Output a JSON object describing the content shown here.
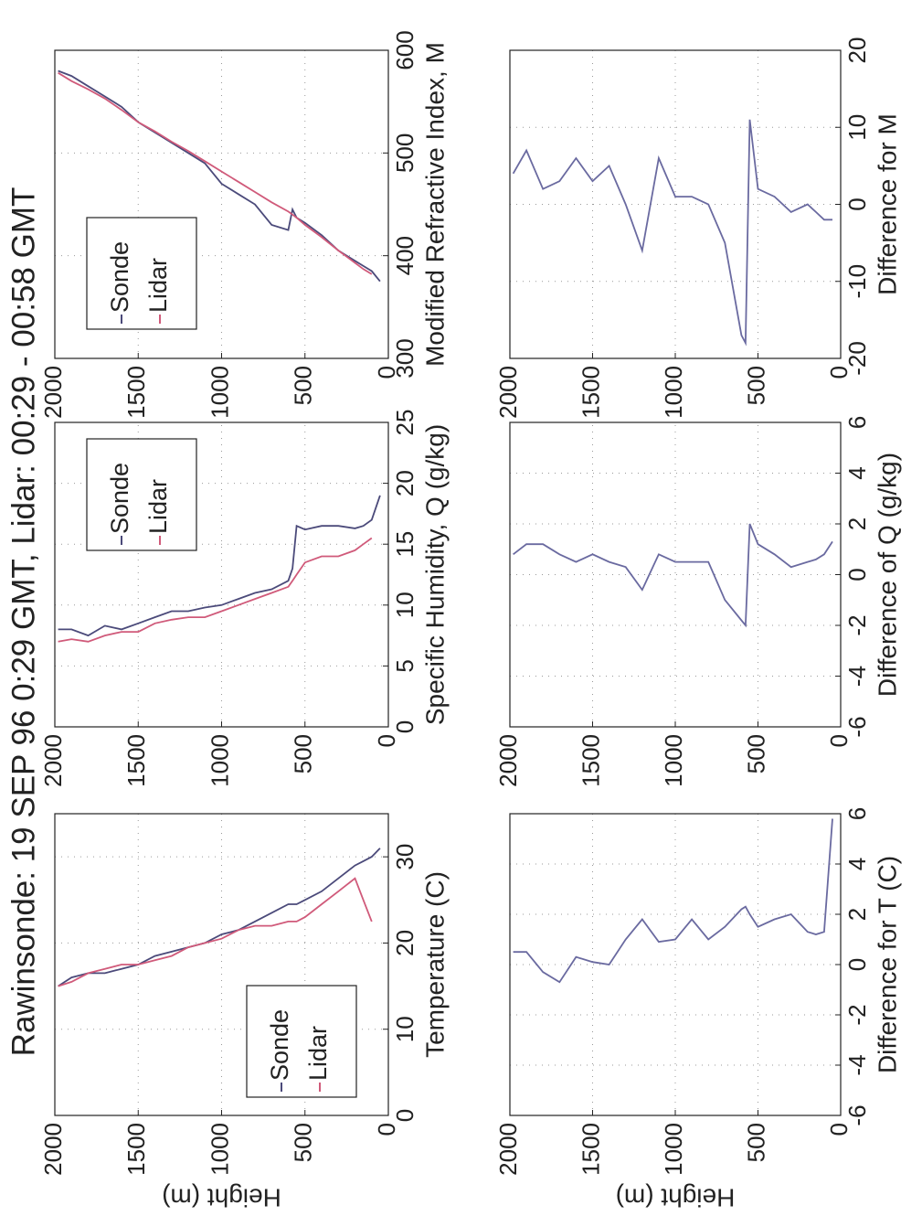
{
  "title": "Rawinsonde: 19 SEP 96  0:29 GMT,  Lidar:  00:29 - 00:58 GMT",
  "chart_data": [
    {
      "type": "line",
      "x_label": "Temperature (C)",
      "y_label": "Height (m)",
      "y": [
        50,
        100,
        150,
        200,
        300,
        400,
        500,
        550,
        575,
        600,
        700,
        800,
        900,
        1000,
        1100,
        1200,
        1300,
        1400,
        1500,
        1600,
        1700,
        1800,
        1900,
        1980
      ],
      "series": [
        {
          "name": "Sonde",
          "color": "#4b4a7a",
          "values": [
            31,
            30,
            29.5,
            29,
            27.5,
            26,
            25,
            24.5,
            24.5,
            24.5,
            23.5,
            22.5,
            21.5,
            21,
            20,
            19.5,
            19,
            18.5,
            17.5,
            17,
            16.5,
            16.5,
            16,
            15
          ]
        },
        {
          "name": "Lidar",
          "color": "#d05a7a",
          "values": [
            null,
            22.5,
            25,
            27.5,
            26,
            24.5,
            23,
            22.5,
            22.5,
            22.5,
            22,
            22,
            21.5,
            20.5,
            20,
            19.5,
            18.5,
            18,
            17.5,
            17.5,
            17,
            16.5,
            15.5,
            15
          ]
        }
      ],
      "xlim": [
        0,
        35
      ],
      "xticks": [
        0,
        10,
        20,
        30
      ],
      "ylim": [
        0,
        2000
      ],
      "yticks": [
        0,
        500,
        1000,
        1500,
        2000
      ],
      "grid": true,
      "legend": "lower left"
    },
    {
      "type": "line",
      "x_label": "Specific Humidity, Q (g/kg)",
      "y": [
        50,
        100,
        150,
        200,
        300,
        400,
        500,
        550,
        575,
        600,
        700,
        800,
        900,
        1000,
        1100,
        1200,
        1300,
        1400,
        1500,
        1600,
        1700,
        1800,
        1900,
        1980
      ],
      "series": [
        {
          "name": "Sonde",
          "color": "#4b4a7a",
          "values": [
            19,
            17,
            16.5,
            16.3,
            16.5,
            16.5,
            16.2,
            16.5,
            13,
            12,
            11.3,
            11,
            10.5,
            10,
            9.8,
            9.5,
            9.5,
            9,
            8.5,
            8,
            8.3,
            7.5,
            8,
            8
          ]
        },
        {
          "name": "Lidar",
          "color": "#d05a7a",
          "values": [
            null,
            15.5,
            15,
            14.5,
            14,
            14,
            13.5,
            12.5,
            12,
            11.5,
            11,
            10.5,
            10,
            9.5,
            9,
            9,
            8.8,
            8.5,
            7.8,
            7.8,
            7.5,
            7,
            7.2,
            7
          ]
        }
      ],
      "xlim": [
        0,
        25
      ],
      "xticks": [
        0,
        5,
        10,
        15,
        20,
        25
      ],
      "ylim": [
        0,
        2000
      ],
      "yticks": [
        0,
        500,
        1000,
        1500,
        2000
      ],
      "grid": true,
      "legend": "upper right"
    },
    {
      "type": "line",
      "x_label": "Modified Refractive Index, M",
      "y": [
        50,
        100,
        150,
        200,
        300,
        400,
        500,
        550,
        575,
        600,
        700,
        800,
        900,
        1000,
        1100,
        1200,
        1300,
        1400,
        1500,
        1600,
        1700,
        1800,
        1900,
        1980
      ],
      "series": [
        {
          "name": "Sonde",
          "color": "#4b4a7a",
          "values": [
            375,
            385,
            390,
            395,
            405,
            420,
            432,
            437,
            445,
            425,
            430,
            450,
            460,
            470,
            490,
            500,
            510,
            520,
            530,
            545,
            555,
            565,
            575,
            580
          ]
        },
        {
          "name": "Lidar",
          "color": "#d05a7a",
          "values": [
            null,
            382,
            387,
            393,
            405,
            418,
            430,
            437,
            440,
            443,
            452,
            462,
            472,
            482,
            492,
            502,
            511,
            521,
            530,
            542,
            553,
            562,
            570,
            578
          ]
        }
      ],
      "xlim": [
        300,
        600
      ],
      "xticks": [
        300,
        400,
        500,
        600
      ],
      "ylim": [
        0,
        2000
      ],
      "yticks": [
        0,
        500,
        1000,
        1500,
        2000
      ],
      "grid": true,
      "legend": "upper left"
    },
    {
      "type": "line",
      "x_label": "Difference for T (C)",
      "y_label": "Height (m)",
      "y": [
        50,
        100,
        150,
        200,
        300,
        400,
        500,
        550,
        575,
        600,
        700,
        800,
        900,
        1000,
        1100,
        1200,
        1300,
        1400,
        1500,
        1600,
        1700,
        1800,
        1900,
        1980
      ],
      "series": [
        {
          "color": "#6a6aa0",
          "values": [
            5.8,
            1.3,
            1.2,
            1.3,
            2,
            1.8,
            1.5,
            2,
            2.3,
            2.2,
            1.5,
            1,
            1.8,
            1,
            0.9,
            1.8,
            1,
            0,
            0.1,
            0.3,
            -0.7,
            -0.3,
            0.5,
            0.5
          ]
        }
      ],
      "xlim": [
        -6,
        6
      ],
      "xticks": [
        -6,
        -4,
        -2,
        0,
        2,
        4,
        6
      ],
      "ylim": [
        0,
        2000
      ],
      "yticks": [
        0,
        500,
        1000,
        1500,
        2000
      ],
      "grid": true
    },
    {
      "type": "line",
      "x_label": "Difference of Q (g/kg)",
      "y": [
        50,
        100,
        150,
        200,
        300,
        400,
        500,
        550,
        575,
        600,
        700,
        800,
        900,
        1000,
        1100,
        1200,
        1300,
        1400,
        1500,
        1600,
        1700,
        1800,
        1900,
        1980
      ],
      "series": [
        {
          "color": "#6a6aa0",
          "values": [
            1.3,
            0.8,
            0.6,
            0.5,
            0.3,
            0.8,
            1.2,
            2,
            -2,
            -1.8,
            -1,
            0.5,
            0.5,
            0.5,
            0.8,
            -0.6,
            0.3,
            0.5,
            0.8,
            0.5,
            0.8,
            1.2,
            1.2,
            0.8
          ]
        }
      ],
      "xlim": [
        -6,
        6
      ],
      "xticks": [
        -6,
        -4,
        -2,
        0,
        2,
        4,
        6
      ],
      "ylim": [
        0,
        2000
      ],
      "yticks": [
        0,
        500,
        1000,
        1500,
        2000
      ],
      "grid": true
    },
    {
      "type": "line",
      "x_label": "Difference for M",
      "y": [
        50,
        100,
        150,
        200,
        300,
        400,
        500,
        550,
        575,
        600,
        700,
        800,
        900,
        1000,
        1100,
        1200,
        1300,
        1400,
        1500,
        1600,
        1700,
        1800,
        1900,
        1980
      ],
      "series": [
        {
          "color": "#6a6aa0",
          "values": [
            -2,
            -2,
            -1,
            0,
            -1,
            1,
            2,
            11,
            -18,
            -17,
            -5,
            0,
            1,
            1,
            6,
            -6,
            0,
            5,
            3,
            6,
            3,
            2,
            7,
            4
          ]
        }
      ],
      "xlim": [
        -20,
        20
      ],
      "xticks": [
        -20,
        -10,
        0,
        10,
        20
      ],
      "ylim": [
        0,
        2000
      ],
      "yticks": [
        0,
        500,
        1000,
        1500,
        2000
      ],
      "grid": true
    }
  ]
}
